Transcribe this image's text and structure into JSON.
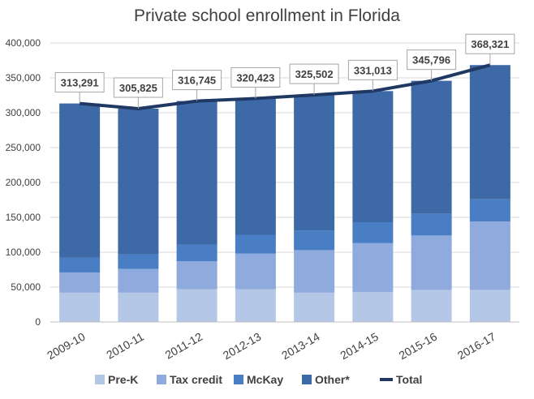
{
  "chart_data": {
    "type": "bar",
    "title": "Private school enrollment in Florida",
    "xlabel": "",
    "ylabel": "",
    "categories": [
      "2009-10",
      "2010-11",
      "2011-12",
      "2012-13",
      "2013-14",
      "2014-15",
      "2015-16",
      "2016-17"
    ],
    "ylim": [
      0,
      400000
    ],
    "yticks": [
      0,
      50000,
      100000,
      150000,
      200000,
      250000,
      300000,
      350000,
      400000
    ],
    "ytick_labels": [
      "0",
      "50,000",
      "100,000",
      "150,000",
      "200,000",
      "250,000",
      "300,000",
      "350,000",
      "400,000"
    ],
    "stacked": true,
    "grid": true,
    "legend_position": "bottom",
    "series": [
      {
        "name": "Pre-K",
        "type": "bar",
        "color": "#b4c7e7",
        "values": [
          42000,
          42000,
          47000,
          47000,
          42000,
          43000,
          46000,
          46000
        ]
      },
      {
        "name": "Tax credit",
        "type": "bar",
        "color": "#8faadc",
        "values": [
          29000,
          34000,
          40000,
          51000,
          61000,
          70000,
          78000,
          98000
        ]
      },
      {
        "name": "McKay",
        "type": "bar",
        "color": "#4a7ec4",
        "values": [
          21000,
          21000,
          24000,
          27000,
          28000,
          30000,
          31000,
          32000
        ]
      },
      {
        "name": "Other*",
        "type": "bar",
        "color": "#3d6aa6",
        "values": [
          221291,
          208825,
          205745,
          195423,
          194502,
          188013,
          190796,
          192321
        ]
      },
      {
        "name": "Total",
        "type": "line",
        "color": "#1f3864",
        "values": [
          313291,
          305825,
          316745,
          320423,
          325502,
          331013,
          345796,
          368321
        ]
      }
    ],
    "data_labels": [
      "313,291",
      "305,825",
      "316,745",
      "320,423",
      "325,502",
      "331,013",
      "345,796",
      "368,321"
    ]
  }
}
